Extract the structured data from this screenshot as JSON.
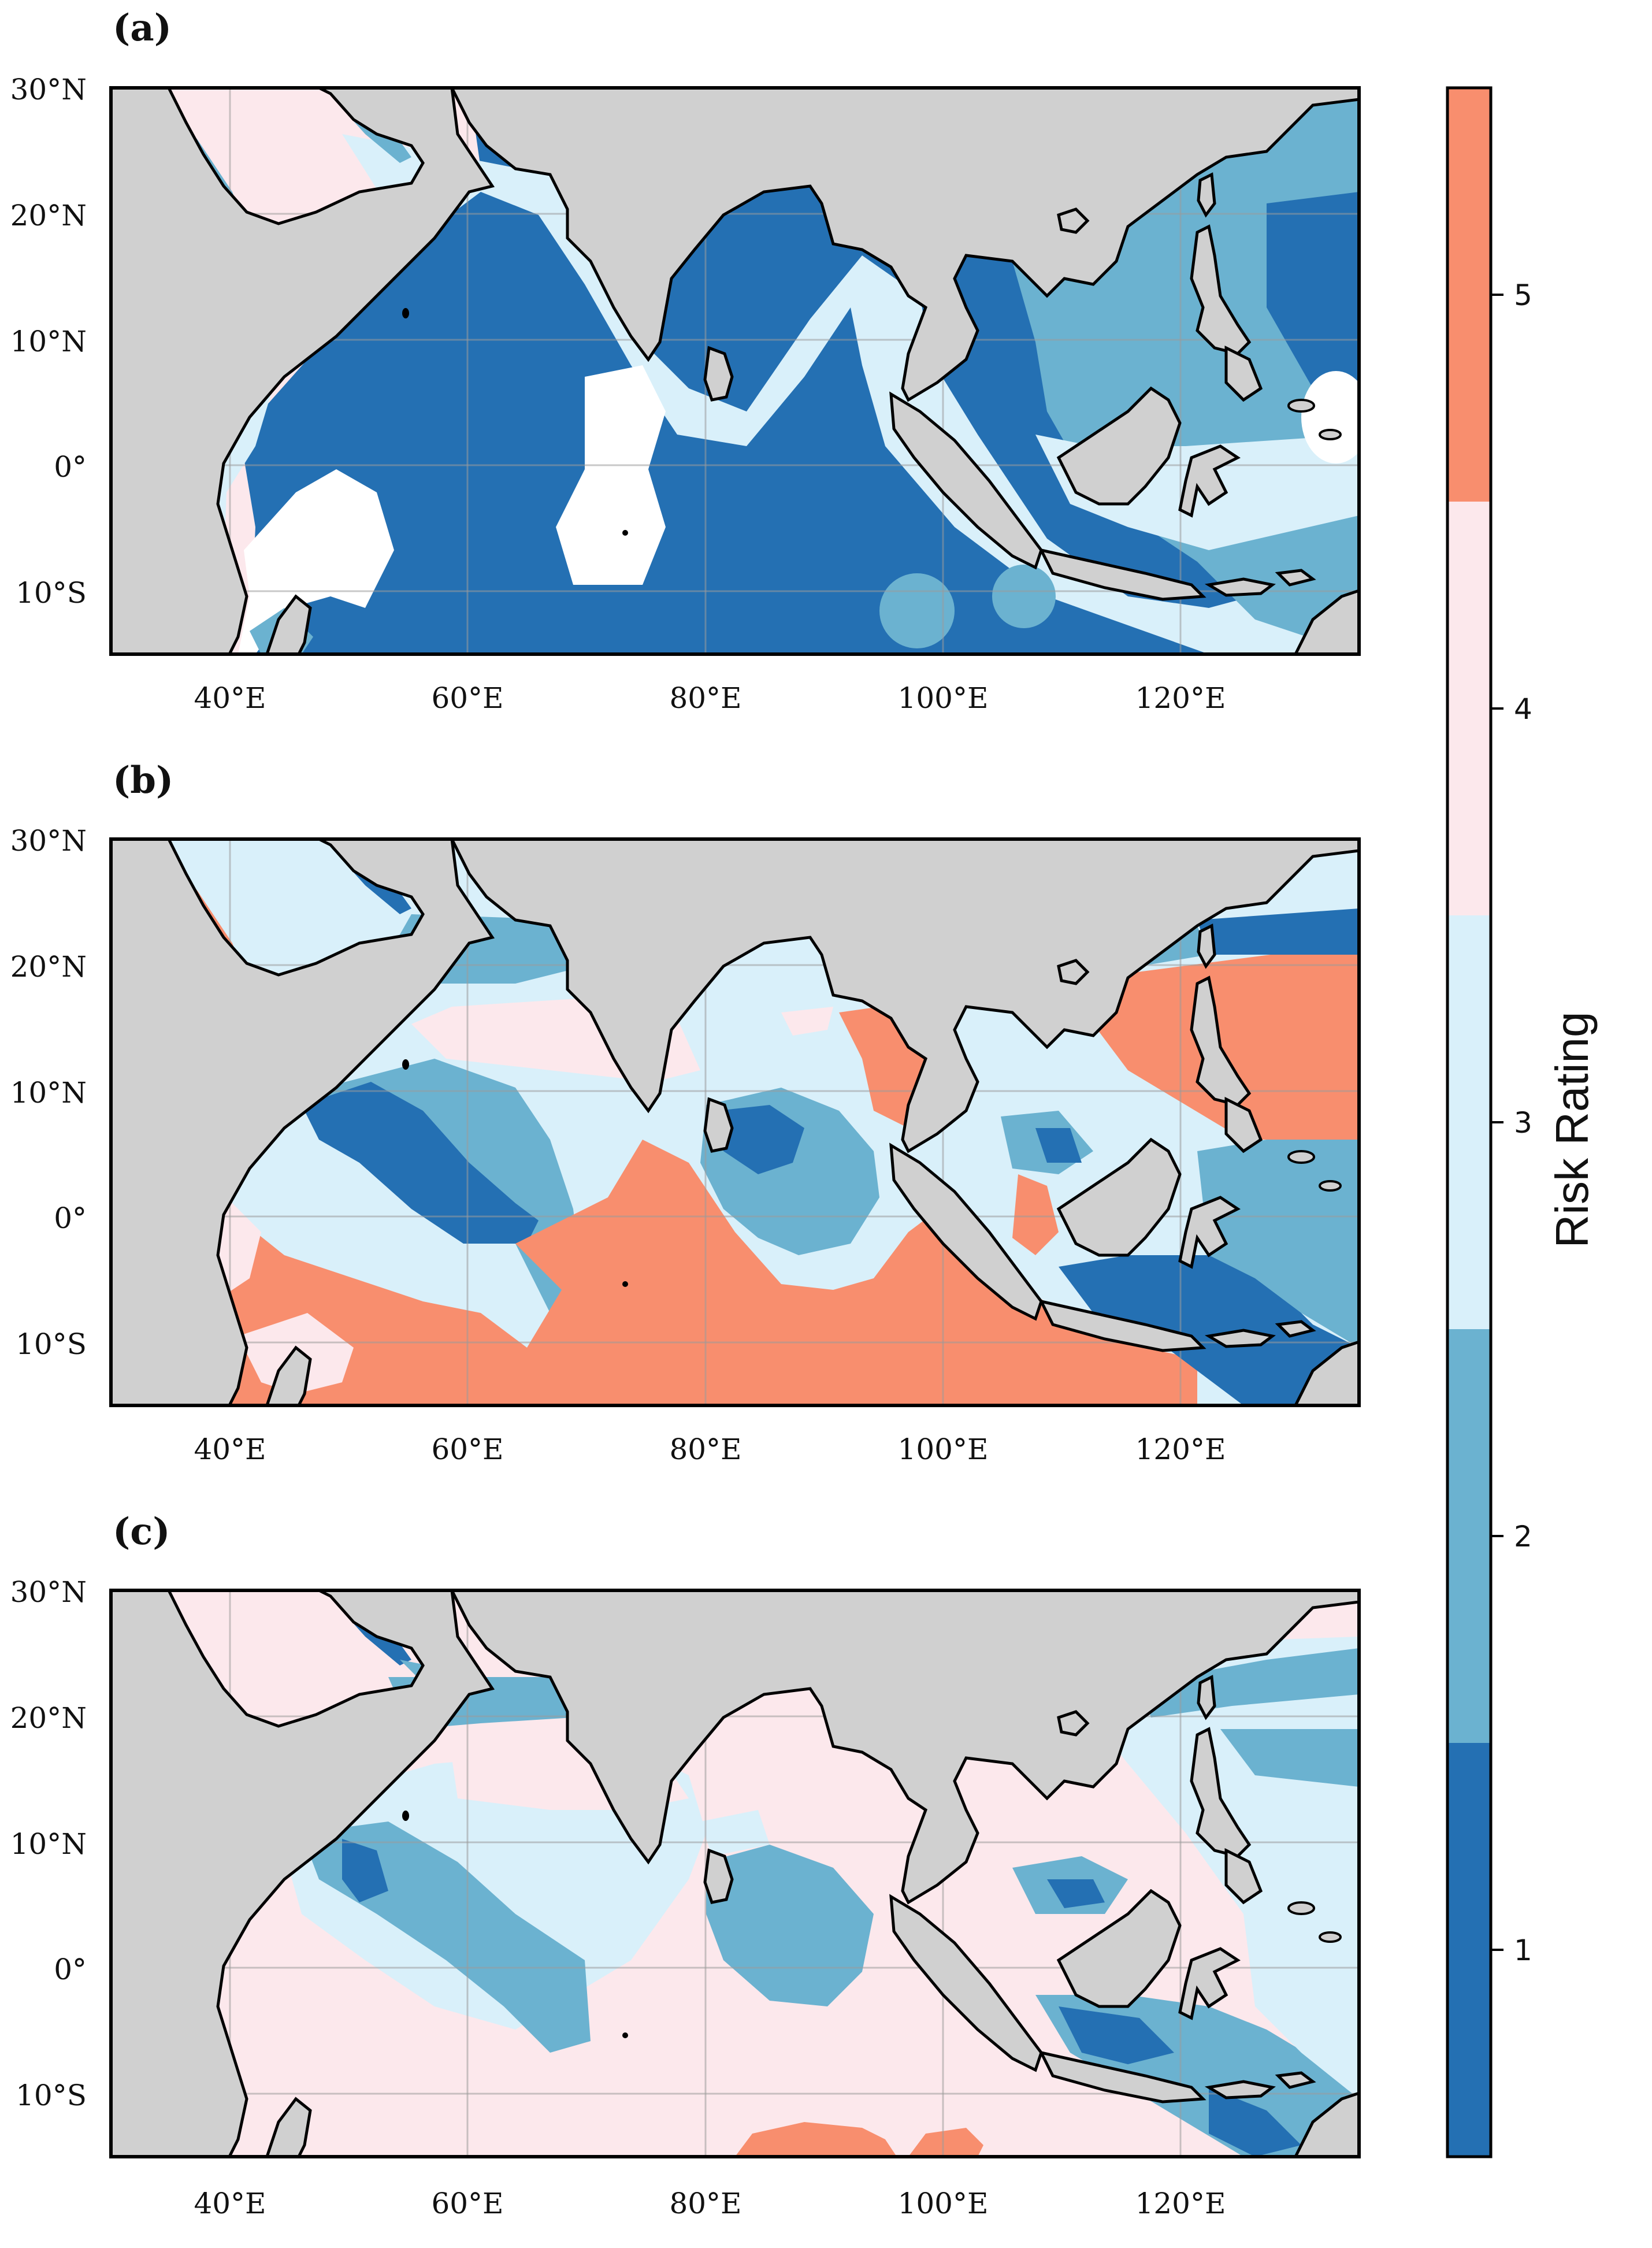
{
  "figure": {
    "panels": [
      {
        "id": "a",
        "label": "(a)"
      },
      {
        "id": "b",
        "label": "(b)"
      },
      {
        "id": "c",
        "label": "(c)"
      }
    ],
    "lon_ticks": [
      "40°E",
      "60°E",
      "80°E",
      "100°E",
      "120°E"
    ],
    "lat_ticks": [
      "30°N",
      "20°N",
      "10°N",
      "0°",
      "10°S"
    ]
  },
  "chart_data": {
    "type": "heatmap",
    "description_of_domain": "Indian Ocean and Maritime Continent",
    "lon_range": [
      30,
      135
    ],
    "lat_range": [
      -15,
      30
    ],
    "lon_tick_values": [
      40,
      60,
      80,
      100,
      120
    ],
    "lat_tick_values": [
      30,
      20,
      10,
      0,
      -10
    ],
    "colorbar": {
      "label": "Risk Rating",
      "range": [
        0.5,
        5.5
      ],
      "ticks": [
        "1",
        "2",
        "3",
        "4",
        "5"
      ],
      "tick_values": [
        1,
        2,
        3,
        4,
        5
      ],
      "classes": [
        {
          "rating": 1,
          "color": "#2470b3"
        },
        {
          "rating": 2,
          "color": "#6bb2d0"
        },
        {
          "rating": 3,
          "color": "#d9f0fa"
        },
        {
          "rating": 4,
          "color": "#fce8ec"
        },
        {
          "rating": 5,
          "color": "#f88e6e"
        }
      ]
    },
    "land_color": "#d0d0d0",
    "no_data_color": "#ffffff",
    "panels": [
      "(a)",
      "(b)",
      "(c)"
    ]
  }
}
